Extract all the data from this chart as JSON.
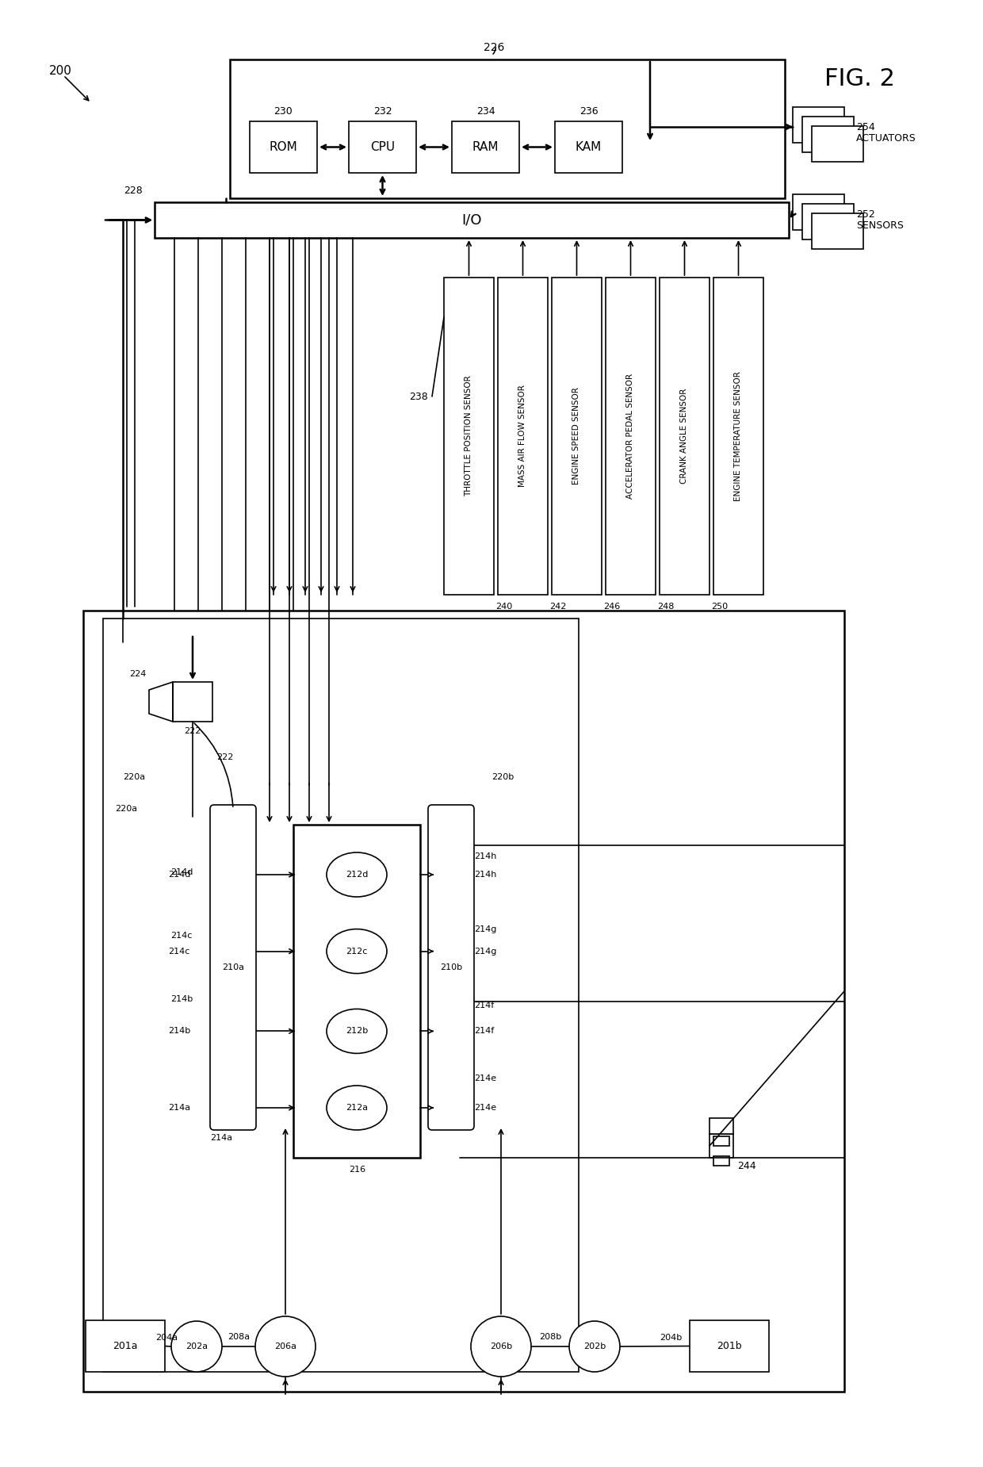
{
  "bg_color": "#ffffff",
  "lc": "#000000",
  "fig2_label": "FIG. 2",
  "ref200": "200",
  "ref226": "226",
  "ref228": "228",
  "ref230": "230",
  "ref232": "232",
  "ref234": "234",
  "ref236": "236",
  "ref238": "238",
  "ref240": "240",
  "ref242": "242",
  "ref244": "244",
  "ref246": "246",
  "ref248": "248",
  "ref250": "250",
  "ref252": "252",
  "ref254": "254",
  "ref201a": "201a",
  "ref202a": "202a",
  "ref204a": "204a",
  "ref206a": "206a",
  "ref208a": "208a",
  "ref210a": "210a",
  "ref212a": "212a",
  "ref212b": "212b",
  "ref212c": "212c",
  "ref212d": "212d",
  "ref214a": "214a",
  "ref214b": "214b",
  "ref214c": "214c",
  "ref214d": "214d",
  "ref214e": "214e",
  "ref214f": "214f",
  "ref214g": "214g",
  "ref214h": "214h",
  "ref216": "216",
  "ref220a": "220a",
  "ref220b": "220b",
  "ref222": "222",
  "ref224": "224",
  "ref201b": "201b",
  "ref202b": "202b",
  "ref204b": "204b",
  "ref206b": "206b",
  "ref208b": "208b",
  "ref210b": "210b",
  "sensors": [
    "THROTTLE POSITION SENSOR",
    "MASS AIR FLOW SENSOR",
    "ENGINE SPEED SENSOR",
    "ACCELERATOR PEDAL SENSOR",
    "CRANK ANGLE SENSOR",
    "ENGINE TEMPERATURE SENSOR"
  ],
  "sensor_labels": [
    "240",
    "242",
    "246",
    "248",
    "250",
    ""
  ]
}
